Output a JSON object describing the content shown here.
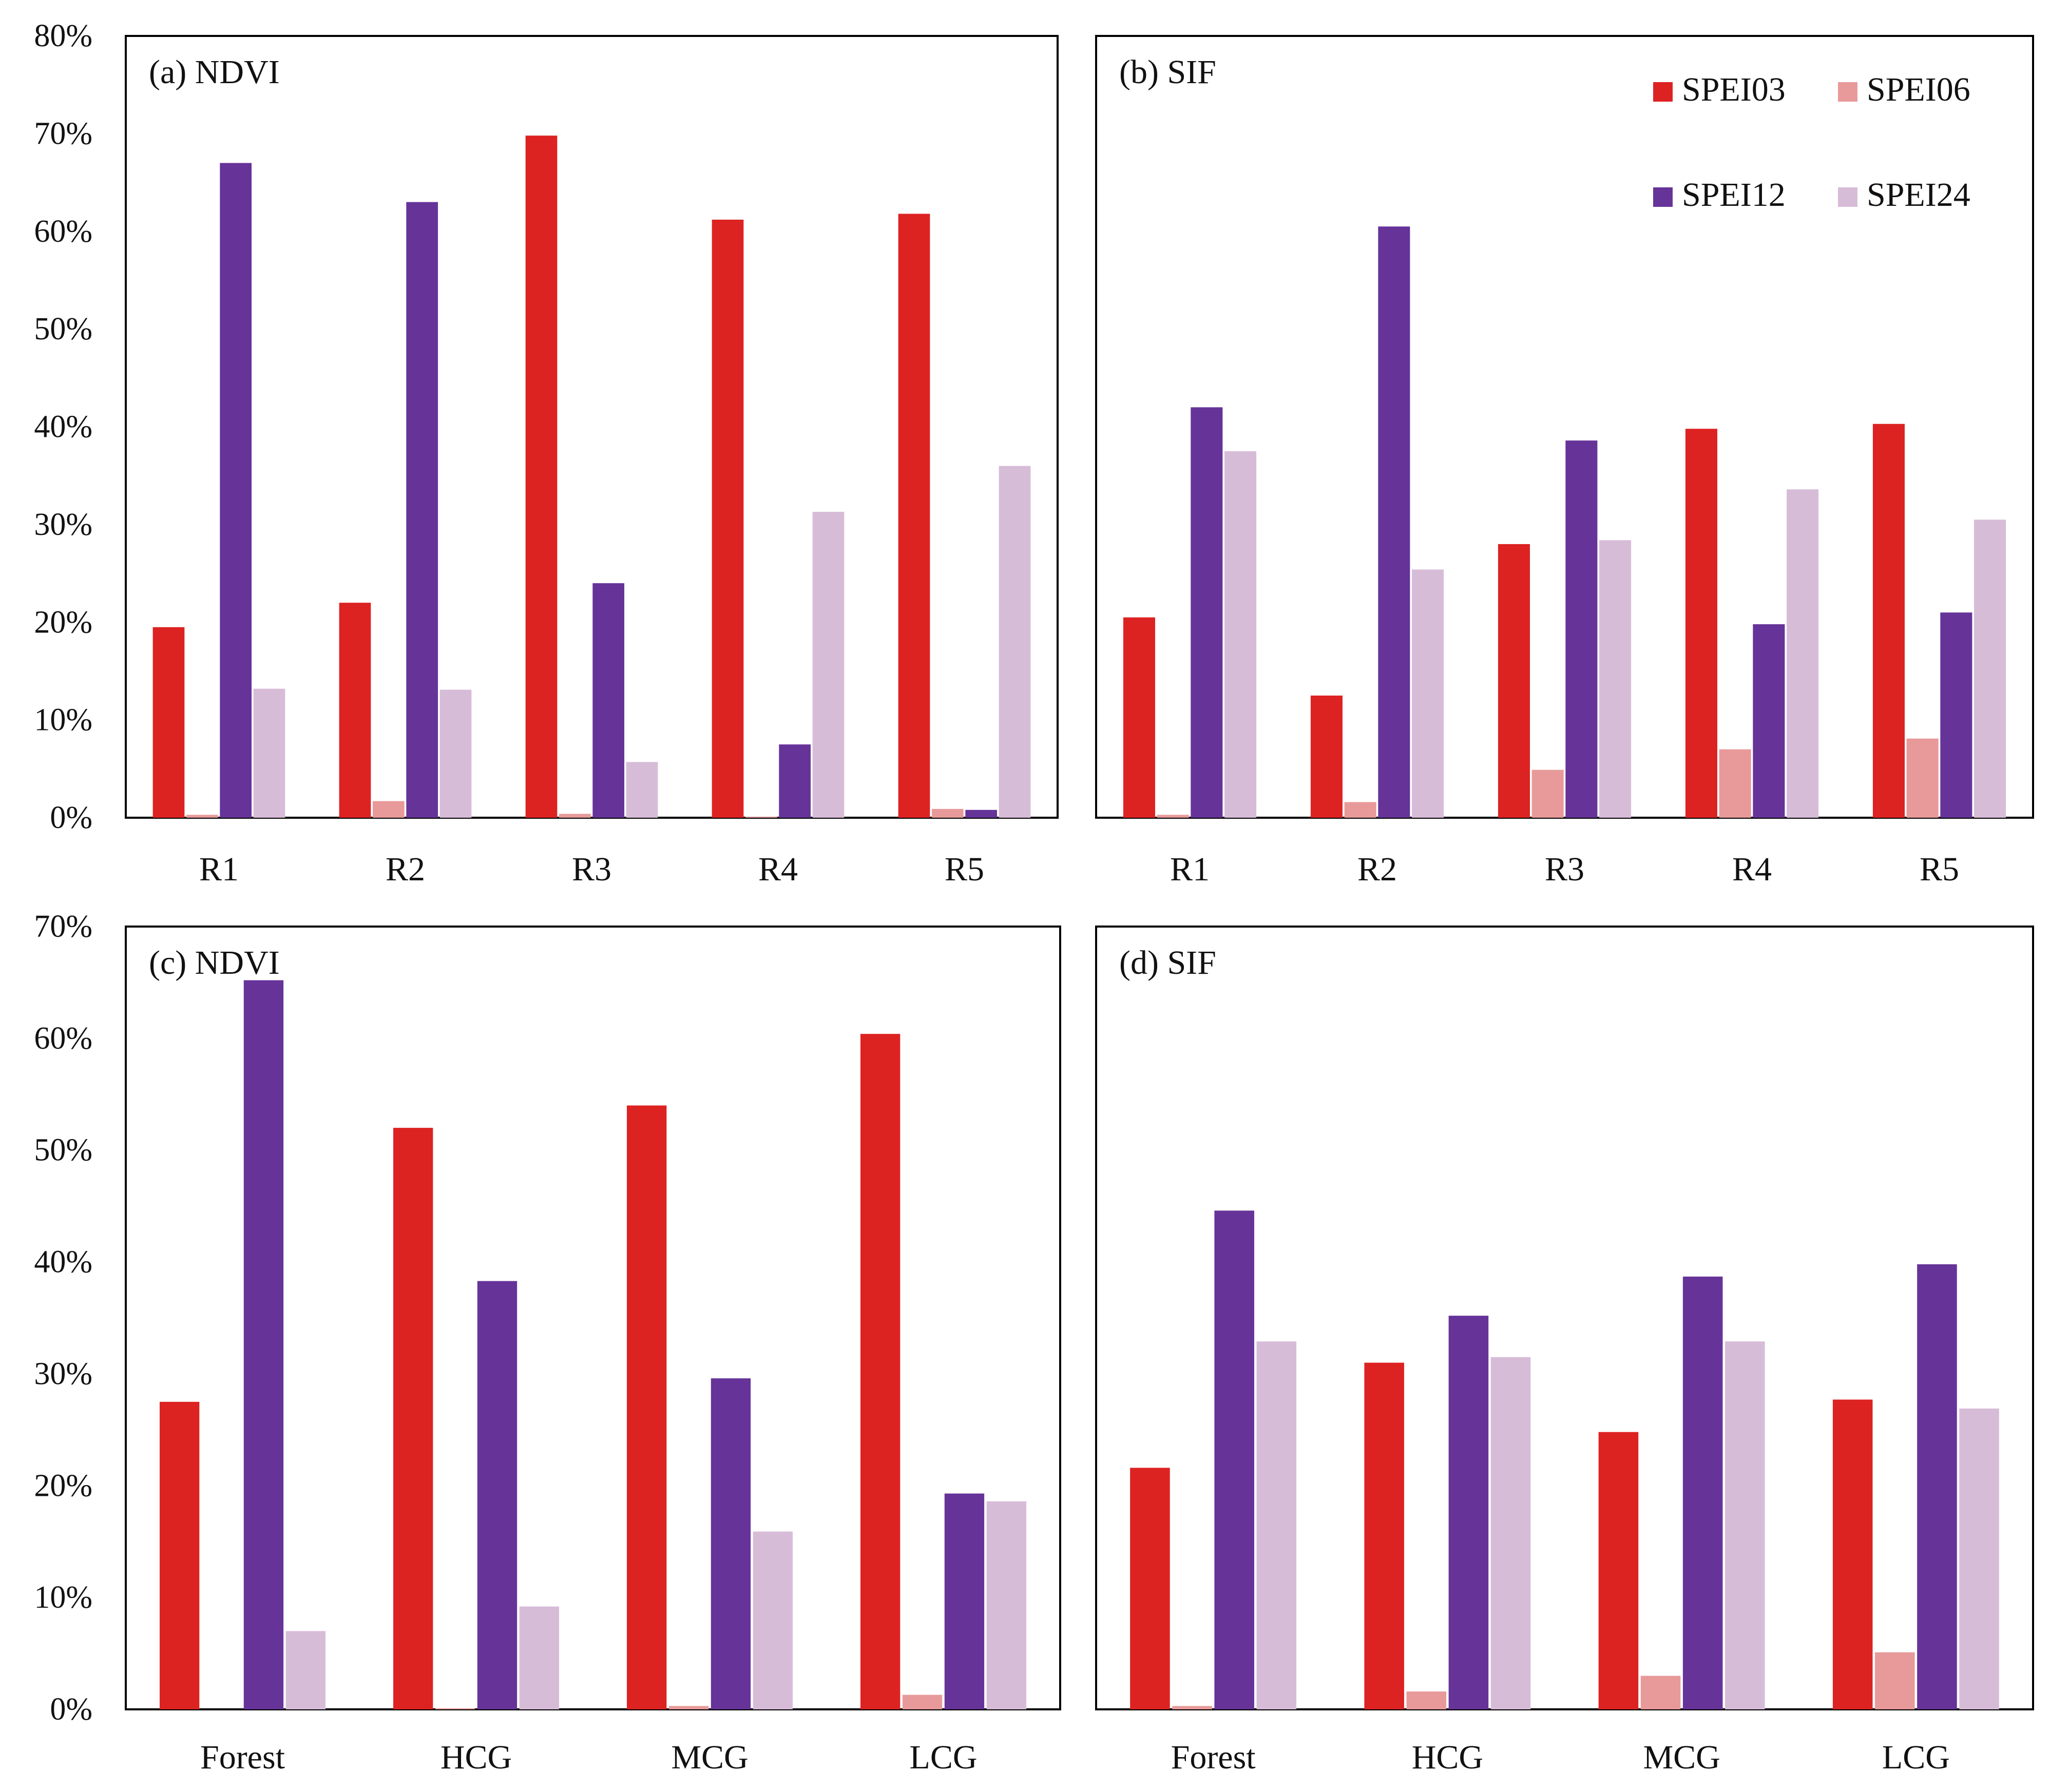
{
  "colors": {
    "SPEI03": "#dd2222",
    "SPEI06": "#e89a9a",
    "SPEI12": "#663399",
    "SPEI24": "#d7bcd8"
  },
  "legend": {
    "placement": "top-right of panel (b)",
    "items": [
      "SPEI03",
      "SPEI06",
      "SPEI12",
      "SPEI24"
    ]
  },
  "chart_data": [
    {
      "id": "a",
      "type": "bar",
      "title": "(a) NDVI",
      "categories": [
        "R1",
        "R2",
        "R3",
        "R4",
        "R5"
      ],
      "ylim": [
        0,
        80
      ],
      "yticks": [
        0,
        10,
        20,
        30,
        40,
        50,
        60,
        70,
        80
      ],
      "ytick_labels": [
        "0%",
        "10%",
        "20%",
        "30%",
        "40%",
        "50%",
        "60%",
        "70%",
        "80%"
      ],
      "series": [
        {
          "name": "SPEI03",
          "values": [
            19.5,
            22.0,
            69.8,
            61.2,
            61.8
          ]
        },
        {
          "name": "SPEI06",
          "values": [
            0.3,
            1.7,
            0.4,
            0.1,
            0.9
          ]
        },
        {
          "name": "SPEI12",
          "values": [
            67.0,
            63.0,
            24.0,
            7.5,
            0.8
          ]
        },
        {
          "name": "SPEI24",
          "values": [
            13.2,
            13.1,
            5.7,
            31.3,
            36.0
          ]
        }
      ]
    },
    {
      "id": "b",
      "type": "bar",
      "title": "(b) SIF",
      "categories": [
        "R1",
        "R2",
        "R3",
        "R4",
        "R5"
      ],
      "ylim": [
        0,
        80
      ],
      "yticks": [
        0,
        10,
        20,
        30,
        40,
        50,
        60,
        70,
        80
      ],
      "ytick_labels": [],
      "series": [
        {
          "name": "SPEI03",
          "values": [
            20.5,
            12.5,
            28.0,
            39.8,
            40.3
          ]
        },
        {
          "name": "SPEI06",
          "values": [
            0.3,
            1.6,
            4.9,
            7.0,
            8.1
          ]
        },
        {
          "name": "SPEI12",
          "values": [
            42.0,
            60.5,
            38.6,
            19.8,
            21.0
          ]
        },
        {
          "name": "SPEI24",
          "values": [
            37.5,
            25.4,
            28.4,
            33.6,
            30.5
          ]
        }
      ]
    },
    {
      "id": "c",
      "type": "bar",
      "title": "(c) NDVI",
      "categories": [
        "Forest",
        "HCG",
        "MCG",
        "LCG"
      ],
      "ylim": [
        0,
        70
      ],
      "yticks": [
        0,
        10,
        20,
        30,
        40,
        50,
        60,
        70
      ],
      "ytick_labels": [
        "0%",
        "10%",
        "20%",
        "30%",
        "40%",
        "50%",
        "60%",
        "70%"
      ],
      "series": [
        {
          "name": "SPEI03",
          "values": [
            27.5,
            52.0,
            54.0,
            60.4
          ]
        },
        {
          "name": "SPEI06",
          "values": [
            0.0,
            0.1,
            0.3,
            1.3
          ]
        },
        {
          "name": "SPEI12",
          "values": [
            65.2,
            38.3,
            29.6,
            19.3
          ]
        },
        {
          "name": "SPEI24",
          "values": [
            7.0,
            9.2,
            15.9,
            18.6
          ]
        }
      ]
    },
    {
      "id": "d",
      "type": "bar",
      "title": "(d) SIF",
      "categories": [
        "Forest",
        "HCG",
        "MCG",
        "LCG"
      ],
      "ylim": [
        0,
        70
      ],
      "yticks": [
        0,
        10,
        20,
        30,
        40,
        50,
        60,
        70
      ],
      "ytick_labels": [],
      "series": [
        {
          "name": "SPEI03",
          "values": [
            21.6,
            31.0,
            24.8,
            27.7
          ]
        },
        {
          "name": "SPEI06",
          "values": [
            0.3,
            1.6,
            3.0,
            5.1
          ]
        },
        {
          "name": "SPEI12",
          "values": [
            44.6,
            35.2,
            38.7,
            39.8
          ]
        },
        {
          "name": "SPEI24",
          "values": [
            32.9,
            31.5,
            32.9,
            26.9
          ]
        }
      ]
    }
  ]
}
